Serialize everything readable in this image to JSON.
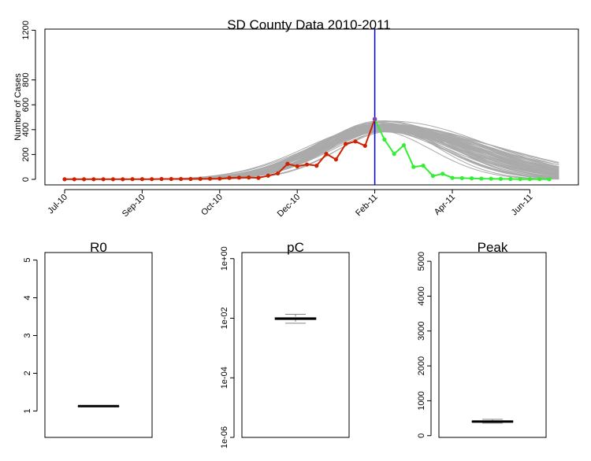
{
  "colors": {
    "observed": "#cc2200",
    "future": "#33ee33",
    "projection": "#aaaaaa",
    "cutoff": "#0000ee",
    "axis": "#000000"
  },
  "chart_data": [
    {
      "id": "main",
      "type": "line",
      "title": "SD County Data 2010-2011",
      "xlabel": "",
      "ylabel": "Number of Cases",
      "ylim": [
        0,
        1250
      ],
      "yticks": [
        0,
        200,
        400,
        600,
        800,
        1200
      ],
      "x_tick_labels": [
        "Jul-10",
        "Sep-10",
        "Oct-10",
        "Dec-10",
        "Feb-11",
        "Apr-11",
        "Jun-11"
      ],
      "x_tick_weeks": [
        0,
        8,
        16,
        24,
        32,
        40,
        48
      ],
      "cutoff_week": 32,
      "series": [
        {
          "kind": "observed",
          "x": [
            0,
            1,
            2,
            3,
            4,
            5,
            6,
            7,
            8,
            9,
            10,
            11,
            12,
            13,
            14,
            15,
            16,
            17,
            18,
            19,
            20,
            21,
            22,
            23,
            24,
            25,
            26,
            27,
            28,
            29,
            30,
            31,
            32
          ],
          "values": [
            1,
            1,
            1,
            1,
            1,
            1,
            1,
            2,
            2,
            2,
            3,
            3,
            3,
            3,
            4,
            5,
            6,
            12,
            14,
            15,
            12,
            30,
            48,
            125,
            105,
            120,
            110,
            205,
            160,
            285,
            305,
            270,
            485
          ]
        },
        {
          "kind": "future",
          "x": [
            32,
            33,
            34,
            35,
            36,
            37,
            38,
            39,
            40,
            41,
            42,
            43,
            44,
            45,
            46,
            47,
            48,
            49,
            50
          ],
          "values": [
            485,
            320,
            205,
            275,
            100,
            110,
            28,
            45,
            12,
            10,
            8,
            6,
            5,
            4,
            3,
            2,
            2,
            2,
            1
          ]
        }
      ],
      "projection_band": {
        "peak_week_range": [
          32,
          34
        ],
        "peak_range": [
          380,
          475
        ],
        "width_weeks_range": [
          5.5,
          8.5
        ],
        "n_curves": 60
      }
    },
    {
      "id": "r0",
      "type": "box",
      "title": "R0",
      "ylim": [
        0.3,
        5.2
      ],
      "yticks": [
        1,
        2,
        3,
        4,
        5
      ],
      "scale": "linear",
      "box": {
        "min": 1.13,
        "q1": 1.13,
        "median": 1.13,
        "q3": 1.13,
        "max": 1.13
      }
    },
    {
      "id": "pc",
      "type": "box",
      "title": "pC",
      "ylim": [
        1e-06,
        1.6
      ],
      "yticks": [
        1e-06,
        0.0001,
        0.01,
        1
      ],
      "ytick_labels": [
        "1e-06",
        "1e-04",
        "1e-02",
        "1e+00"
      ],
      "scale": "log",
      "box": {
        "min": 0.0068,
        "q1": 0.0092,
        "median": 0.0096,
        "q3": 0.0104,
        "max": 0.0135
      }
    },
    {
      "id": "peak",
      "type": "box",
      "title": "Peak",
      "ylim": [
        -50,
        5250
      ],
      "yticks": [
        0,
        1000,
        2000,
        3000,
        4000,
        5000
      ],
      "scale": "linear",
      "box": {
        "min": 360,
        "q1": 390,
        "median": 405,
        "q3": 420,
        "max": 470
      }
    }
  ]
}
